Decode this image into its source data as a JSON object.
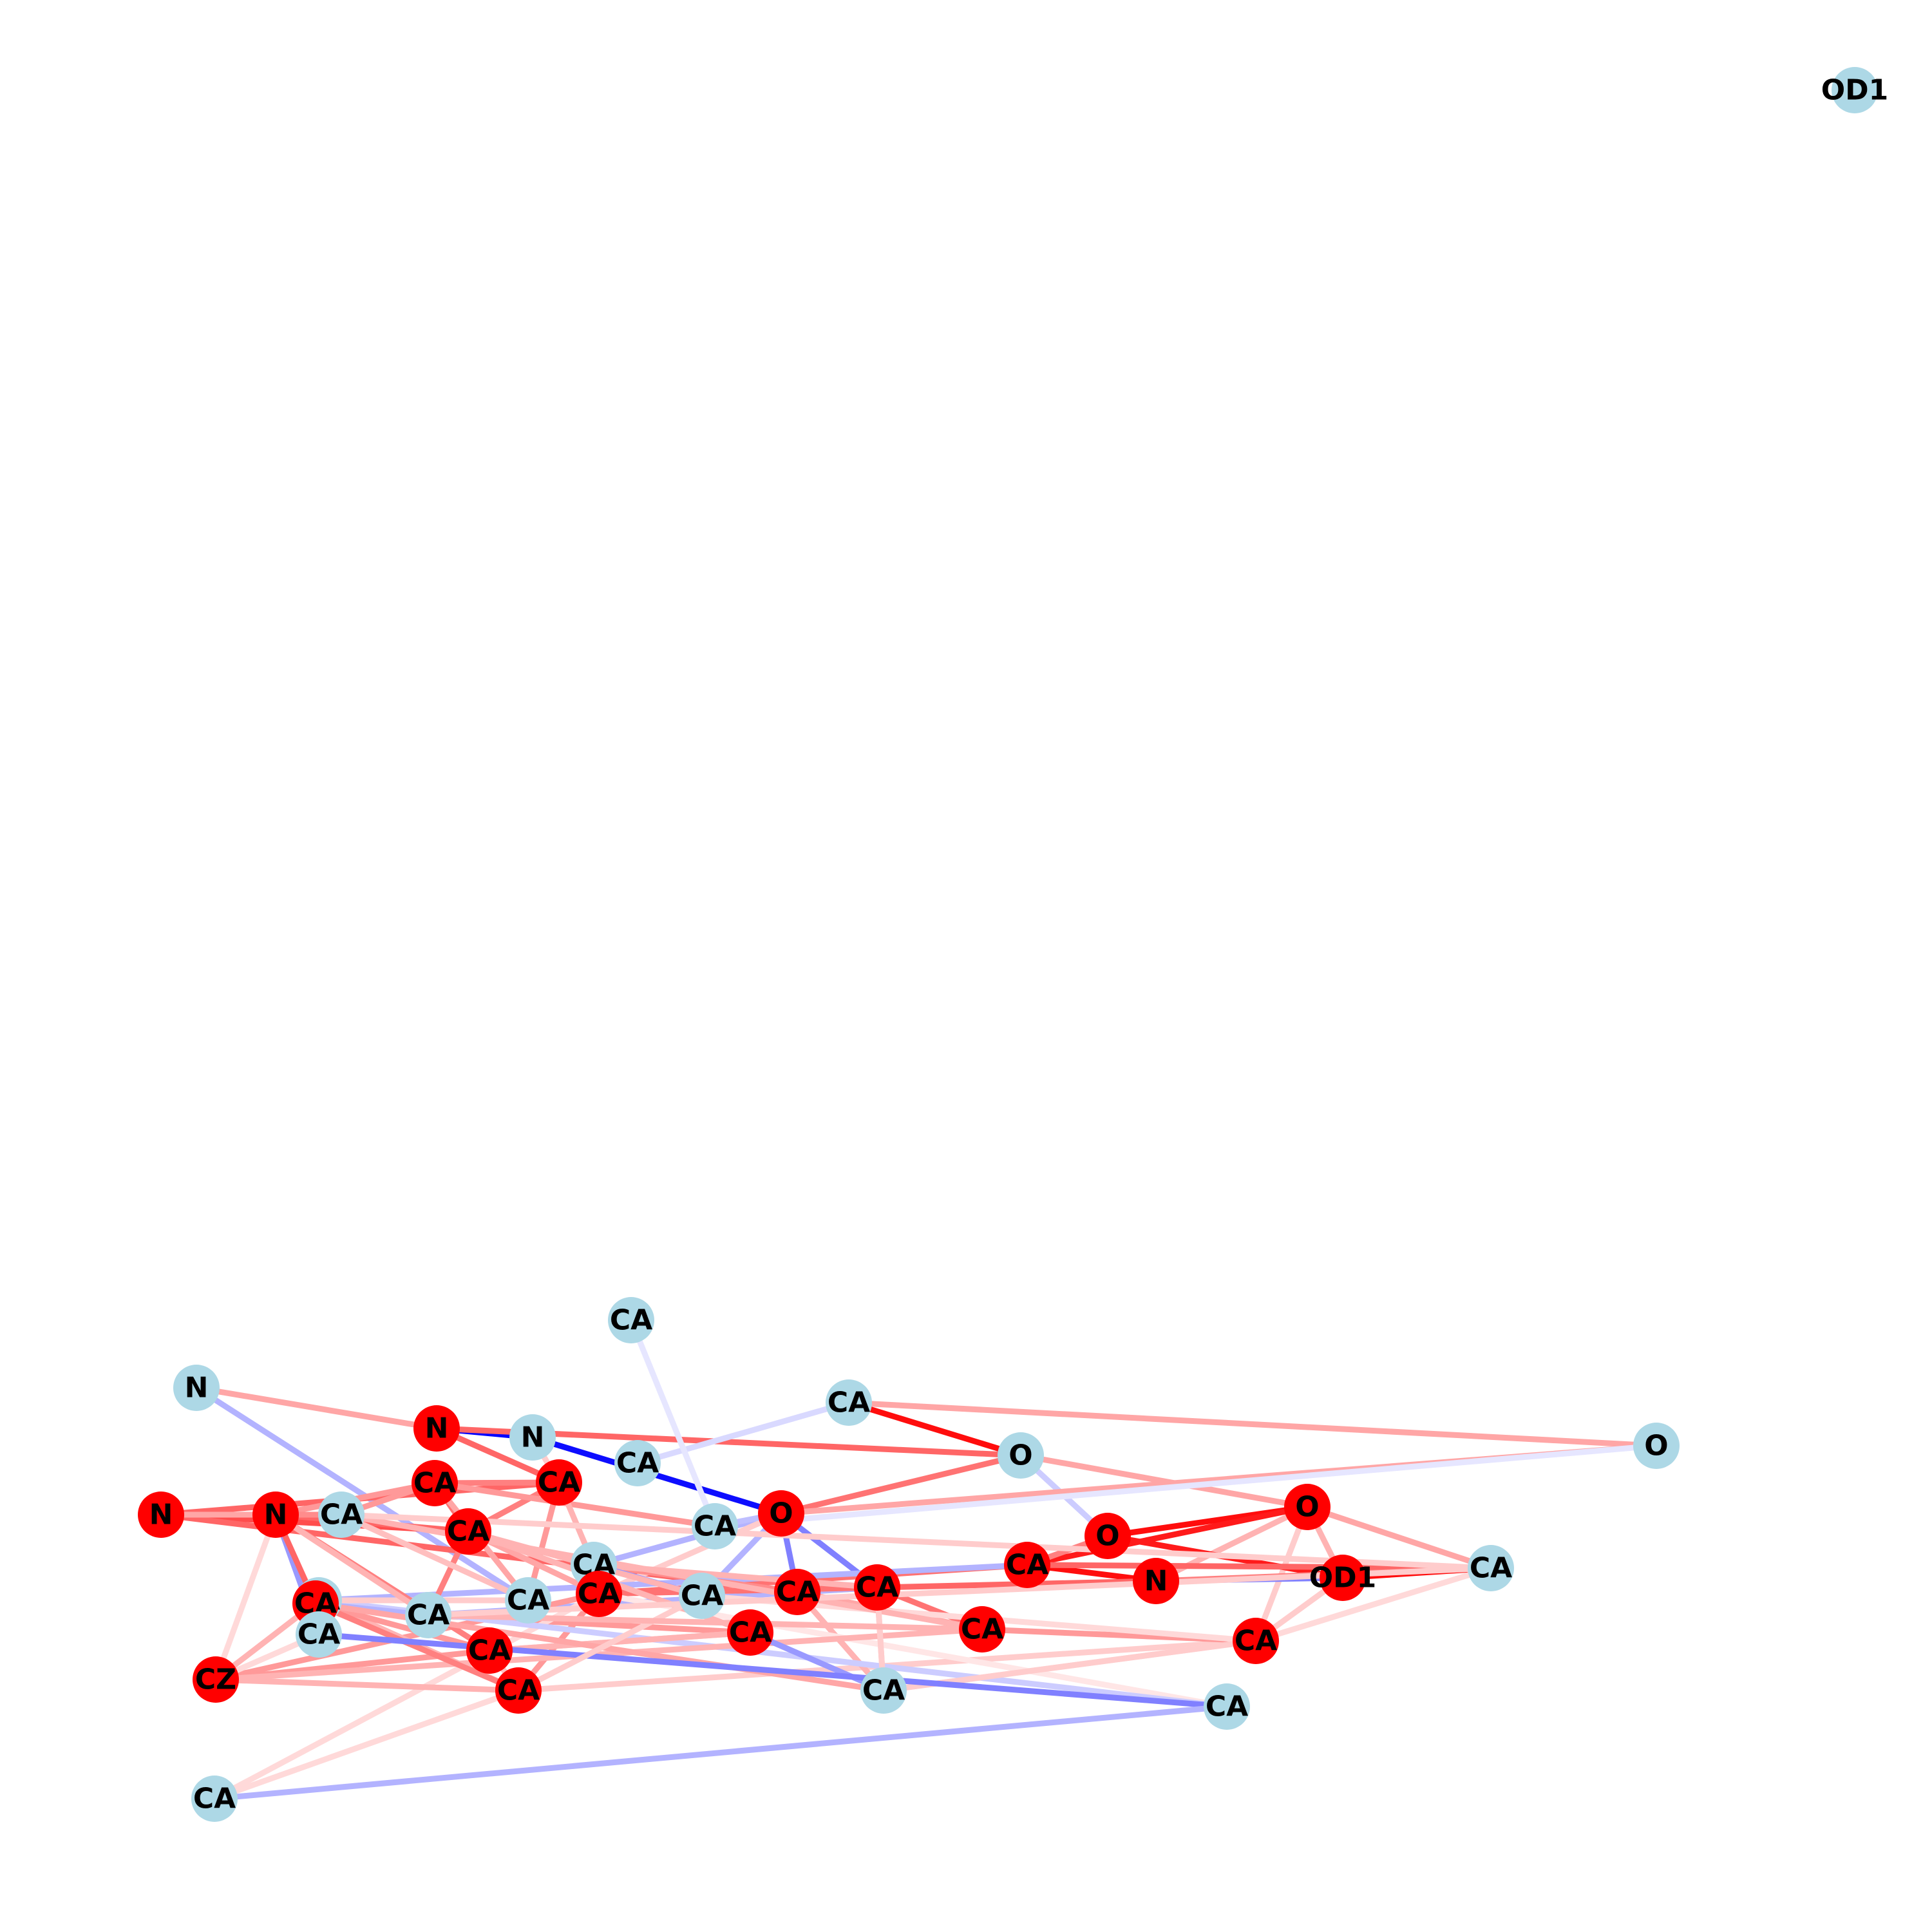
{
  "colors": {
    "background": "#ffffff",
    "node_highlight": "#ff0000",
    "node_default": "#add8e6",
    "edge_positive": "#ff0000",
    "edge_negative": "#0000ff",
    "label": "#000000"
  },
  "graph": {
    "nodes": [
      {
        "id": "n0",
        "label": "OD1",
        "group": "default"
      },
      {
        "id": "n1",
        "label": "CA",
        "group": "default"
      },
      {
        "id": "n2",
        "label": "N",
        "group": "default"
      },
      {
        "id": "n3",
        "label": "CA",
        "group": "default"
      },
      {
        "id": "n4",
        "label": "N",
        "group": "highlight"
      },
      {
        "id": "n5",
        "label": "N",
        "group": "default"
      },
      {
        "id": "n6",
        "label": "O",
        "group": "default"
      },
      {
        "id": "n7",
        "label": "O",
        "group": "default"
      },
      {
        "id": "n8",
        "label": "CA",
        "group": "default"
      },
      {
        "id": "n9",
        "label": "CA",
        "group": "highlight"
      },
      {
        "id": "n10",
        "label": "CA",
        "group": "highlight"
      },
      {
        "id": "n11",
        "label": "O",
        "group": "highlight"
      },
      {
        "id": "n12",
        "label": "CA",
        "group": "default"
      },
      {
        "id": "n13",
        "label": "N",
        "group": "highlight"
      },
      {
        "id": "n14",
        "label": "CA",
        "group": "default"
      },
      {
        "id": "n15",
        "label": "O",
        "group": "highlight"
      },
      {
        "id": "n16",
        "label": "CA",
        "group": "default"
      },
      {
        "id": "n17",
        "label": "N",
        "group": "highlight"
      },
      {
        "id": "n18",
        "label": "CA",
        "group": "default"
      },
      {
        "id": "n19",
        "label": "CA",
        "group": "highlight"
      },
      {
        "id": "n20",
        "label": "O",
        "group": "highlight"
      },
      {
        "id": "n21",
        "label": "CA",
        "group": "default"
      },
      {
        "id": "n22",
        "label": "CA",
        "group": "highlight"
      },
      {
        "id": "n23",
        "label": "CA",
        "group": "default"
      },
      {
        "id": "n24",
        "label": "CA",
        "group": "highlight"
      },
      {
        "id": "n25",
        "label": "CA",
        "group": "highlight"
      },
      {
        "id": "n26",
        "label": "N",
        "group": "highlight"
      },
      {
        "id": "n27",
        "label": "OD1",
        "group": "highlight"
      },
      {
        "id": "n28",
        "label": "CA",
        "group": "highlight"
      },
      {
        "id": "n29",
        "label": "CA",
        "group": "highlight"
      },
      {
        "id": "n30",
        "label": "CA",
        "group": "default"
      },
      {
        "id": "n31",
        "label": "CA",
        "group": "highlight"
      },
      {
        "id": "n32",
        "label": "CA",
        "group": "default"
      },
      {
        "id": "n33",
        "label": "CA",
        "group": "highlight"
      },
      {
        "id": "n34",
        "label": "CA",
        "group": "highlight"
      },
      {
        "id": "n35",
        "label": "CA",
        "group": "default"
      },
      {
        "id": "n36",
        "label": "CZ",
        "group": "highlight"
      },
      {
        "id": "n37",
        "label": "CA",
        "group": "highlight"
      },
      {
        "id": "n38",
        "label": "CA",
        "group": "highlight"
      },
      {
        "id": "n39",
        "label": "CA",
        "group": "default"
      },
      {
        "id": "n40",
        "label": "CA",
        "group": "default"
      },
      {
        "id": "n41",
        "label": "CA",
        "group": "default"
      }
    ],
    "edges": [
      {
        "source": "n5",
        "target": "n4",
        "weight": -1.0
      },
      {
        "source": "n5",
        "target": "n11",
        "weight": -0.95
      },
      {
        "source": "n4",
        "target": "n6",
        "weight": 0.6
      },
      {
        "source": "n2",
        "target": "n4",
        "weight": 0.35
      },
      {
        "source": "n2",
        "target": "n23",
        "weight": -0.3
      },
      {
        "source": "n3",
        "target": "n6",
        "weight": 0.95
      },
      {
        "source": "n3",
        "target": "n7",
        "weight": 0.35
      },
      {
        "source": "n3",
        "target": "n8",
        "weight": -0.15
      },
      {
        "source": "n6",
        "target": "n11",
        "weight": 0.55
      },
      {
        "source": "n6",
        "target": "n15",
        "weight": 0.35
      },
      {
        "source": "n6",
        "target": "n20",
        "weight": -0.2
      },
      {
        "source": "n7",
        "target": "n11",
        "weight": 0.35
      },
      {
        "source": "n7",
        "target": "n12",
        "weight": -0.1
      },
      {
        "source": "n4",
        "target": "n10",
        "weight": 0.6
      },
      {
        "source": "n10",
        "target": "n13",
        "weight": 0.6
      },
      {
        "source": "n10",
        "target": "n9",
        "weight": 0.5
      },
      {
        "source": "n10",
        "target": "n5",
        "weight": 0.2
      },
      {
        "source": "n10",
        "target": "n23",
        "weight": 0.4
      },
      {
        "source": "n10",
        "target": "n25",
        "weight": 0.5
      },
      {
        "source": "n13",
        "target": "n25",
        "weight": 0.7
      },
      {
        "source": "n13",
        "target": "n24",
        "weight": 0.6
      },
      {
        "source": "n11",
        "target": "n24",
        "weight": -0.5
      },
      {
        "source": "n11",
        "target": "n22",
        "weight": -0.5
      },
      {
        "source": "n11",
        "target": "n16",
        "weight": -0.3
      },
      {
        "source": "n11",
        "target": "n18",
        "weight": -0.3
      },
      {
        "source": "n11",
        "target": "n31",
        "weight": 0.2
      },
      {
        "source": "n12",
        "target": "n11",
        "weight": -0.25
      },
      {
        "source": "n12",
        "target": "n9",
        "weight": 0.4
      },
      {
        "source": "n15",
        "target": "n20",
        "weight": 0.95
      },
      {
        "source": "n15",
        "target": "n19",
        "weight": 0.9
      },
      {
        "source": "n15",
        "target": "n27",
        "weight": 0.3
      },
      {
        "source": "n15",
        "target": "n21",
        "weight": 0.35
      },
      {
        "source": "n15",
        "target": "n26",
        "weight": 0.3
      },
      {
        "source": "n15",
        "target": "n28",
        "weight": 0.2
      },
      {
        "source": "n20",
        "target": "n27",
        "weight": 0.9
      },
      {
        "source": "n20",
        "target": "n19",
        "weight": 0.5
      },
      {
        "source": "n19",
        "target": "n26",
        "weight": 0.95
      },
      {
        "source": "n19",
        "target": "n21",
        "weight": 0.6
      },
      {
        "source": "n19",
        "target": "n31",
        "weight": 0.55
      },
      {
        "source": "n19",
        "target": "n32",
        "weight": -0.3
      },
      {
        "source": "n26",
        "target": "n27",
        "weight": -0.5
      },
      {
        "source": "n26",
        "target": "n21",
        "weight": 0.5
      },
      {
        "source": "n26",
        "target": "n22",
        "weight": 0.6
      },
      {
        "source": "n27",
        "target": "n21",
        "weight": 0.95
      },
      {
        "source": "n27",
        "target": "n28",
        "weight": 0.2
      },
      {
        "source": "n28",
        "target": "n21",
        "weight": 0.15
      },
      {
        "source": "n28",
        "target": "n38",
        "weight": 0.2
      },
      {
        "source": "n28",
        "target": "n35",
        "weight": 0.15
      },
      {
        "source": "n29",
        "target": "n28",
        "weight": 0.4
      },
      {
        "source": "n29",
        "target": "n22",
        "weight": 0.55
      },
      {
        "source": "n29",
        "target": "n24",
        "weight": 0.35
      },
      {
        "source": "n22",
        "target": "n24",
        "weight": 0.5
      },
      {
        "source": "n22",
        "target": "n30",
        "weight": -0.3
      },
      {
        "source": "n22",
        "target": "n31",
        "weight": 0.55
      },
      {
        "source": "n22",
        "target": "n35",
        "weight": 0.25
      },
      {
        "source": "n24",
        "target": "n16",
        "weight": 0.45
      },
      {
        "source": "n24",
        "target": "n35",
        "weight": 0.3
      },
      {
        "source": "n30",
        "target": "n32",
        "weight": 0.5
      },
      {
        "source": "n30",
        "target": "n25",
        "weight": 0.5
      },
      {
        "source": "n30",
        "target": "n33",
        "weight": 0.4
      },
      {
        "source": "n16",
        "target": "n22",
        "weight": 0.3
      },
      {
        "source": "n16",
        "target": "n18",
        "weight": -0.4
      },
      {
        "source": "n16",
        "target": "n10",
        "weight": 0.3
      },
      {
        "source": "n18",
        "target": "n25",
        "weight": 0.3
      },
      {
        "source": "n18",
        "target": "n28",
        "weight": 0.15
      },
      {
        "source": "n31",
        "target": "n38",
        "weight": 0.4
      },
      {
        "source": "n31",
        "target": "n36",
        "weight": 0.4
      },
      {
        "source": "n31",
        "target": "n25",
        "weight": 0.35
      },
      {
        "source": "n31",
        "target": "n41",
        "weight": 0.15
      },
      {
        "source": "n31",
        "target": "n40",
        "weight": 0.1
      },
      {
        "source": "n32",
        "target": "n38",
        "weight": 0.3
      },
      {
        "source": "n32",
        "target": "n36",
        "weight": 0.3
      },
      {
        "source": "n32",
        "target": "n40",
        "weight": -0.2
      },
      {
        "source": "n32",
        "target": "n23",
        "weight": 0.2
      },
      {
        "source": "n25",
        "target": "n17",
        "weight": 0.6
      },
      {
        "source": "n25",
        "target": "n9",
        "weight": 0.55
      },
      {
        "source": "n17",
        "target": "n9",
        "weight": 0.4
      },
      {
        "source": "n17",
        "target": "n13",
        "weight": 0.35
      },
      {
        "source": "n17",
        "target": "n14",
        "weight": 0.45
      },
      {
        "source": "n17",
        "target": "n37",
        "weight": 0.5
      },
      {
        "source": "n17",
        "target": "n30",
        "weight": 0.3
      },
      {
        "source": "n17",
        "target": "n36",
        "weight": 0.15
      },
      {
        "source": "n17",
        "target": "n39",
        "weight": -0.4
      },
      {
        "source": "n17",
        "target": "n34",
        "weight": 0.6
      },
      {
        "source": "n9",
        "target": "n14",
        "weight": 0.4
      },
      {
        "source": "n9",
        "target": "n23",
        "weight": 0.35
      },
      {
        "source": "n14",
        "target": "n23",
        "weight": 0.25
      },
      {
        "source": "n14",
        "target": "n29",
        "weight": 0.3
      },
      {
        "source": "n14",
        "target": "n21",
        "weight": 0.2
      },
      {
        "source": "n36",
        "target": "n37",
        "weight": 0.4
      },
      {
        "source": "n36",
        "target": "n38",
        "weight": 0.3
      },
      {
        "source": "n36",
        "target": "n29",
        "weight": 0.3
      },
      {
        "source": "n37",
        "target": "n38",
        "weight": 0.25
      },
      {
        "source": "n37",
        "target": "n33",
        "weight": 0.25
      },
      {
        "source": "n37",
        "target": "n34",
        "weight": 0.4
      },
      {
        "source": "n33",
        "target": "n25",
        "weight": 0.3
      },
      {
        "source": "n33",
        "target": "n35",
        "weight": -0.4
      },
      {
        "source": "n33",
        "target": "n37",
        "weight": 0.3
      },
      {
        "source": "n34",
        "target": "n30",
        "weight": -0.3
      },
      {
        "source": "n34",
        "target": "n38",
        "weight": 0.5
      },
      {
        "source": "n34",
        "target": "n39",
        "weight": 0.3
      },
      {
        "source": "n34",
        "target": "n35",
        "weight": 0.35
      },
      {
        "source": "n35",
        "target": "n22",
        "weight": 0.2
      },
      {
        "source": "n35",
        "target": "n28",
        "weight": 0.2
      },
      {
        "source": "n39",
        "target": "n40",
        "weight": -0.5
      },
      {
        "source": "n39",
        "target": "n36",
        "weight": 0.15
      },
      {
        "source": "n40",
        "target": "n41",
        "weight": -0.3
      },
      {
        "source": "n41",
        "target": "n38",
        "weight": 0.15
      },
      {
        "source": "n38",
        "target": "n18",
        "weight": 0.2
      },
      {
        "source": "n1",
        "target": "n12",
        "weight": -0.1
      },
      {
        "source": "n29",
        "target": "n30",
        "weight": 0.3
      },
      {
        "source": "n21",
        "target": "n30",
        "weight": 0.2
      }
    ]
  }
}
